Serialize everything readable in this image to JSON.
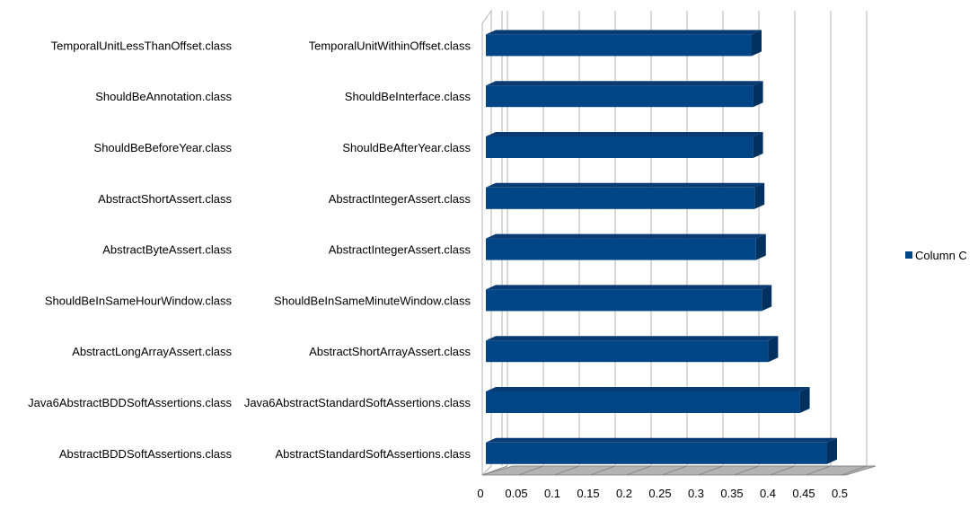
{
  "chart_data": {
    "type": "bar",
    "orientation": "horizontal",
    "three_d": true,
    "categories_outer": [
      "TemporalUnitLessThanOffset.class",
      "ShouldBeAnnotation.class",
      "ShouldBeBeforeYear.class",
      "AbstractShortAssert.class",
      "AbstractByteAssert.class",
      "ShouldBeInSameHourWindow.class",
      "AbstractLongArrayAssert.class",
      "Java6AbstractBDDSoftAssertions.class",
      "AbstractBDDSoftAssertions.class"
    ],
    "categories_inner": [
      "TemporalUnitWithinOffset.class",
      "ShouldBeInterface.class",
      "ShouldBeAfterYear.class",
      "AbstractIntegerAssert.class",
      "AbstractIntegerAssert.class",
      "ShouldBeInSameMinuteWindow.class",
      "AbstractShortArrayAssert.class",
      "Java6AbstractStandardSoftAssertions.class",
      "AbstractStandardSoftAssertions.class"
    ],
    "series": [
      {
        "name": "Column C",
        "color": "#004586",
        "values": [
          0.37,
          0.372,
          0.372,
          0.374,
          0.376,
          0.384,
          0.393,
          0.437,
          0.475
        ]
      }
    ],
    "xticks": [
      "0",
      "0.05",
      "0.1",
      "0.15",
      "0.2",
      "0.25",
      "0.3",
      "0.35",
      "0.4",
      "0.45",
      "0.5"
    ],
    "xlim": [
      0,
      0.5
    ],
    "grid": true,
    "legend_position": "right"
  }
}
